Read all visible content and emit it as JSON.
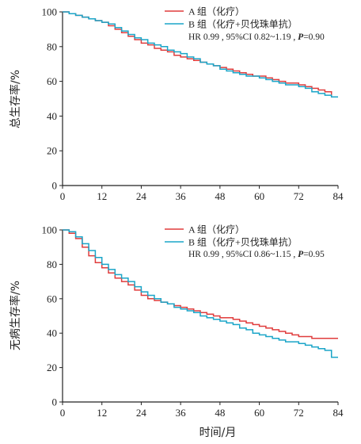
{
  "chart_data": [
    {
      "type": "line",
      "ylabel": "总生存率/%",
      "xlabel": "",
      "xlim": [
        0,
        84
      ],
      "ylim": [
        0,
        100
      ],
      "xticks": [
        "0",
        "12",
        "24",
        "36",
        "48",
        "60",
        "72",
        "84"
      ],
      "yticks": [
        "0",
        "20",
        "40",
        "60",
        "80",
        "100"
      ],
      "grid": false,
      "legend_position": "top-right",
      "stat_text": {
        "prefix": "HR 0.99 , 95%CI 0.82~1.19 , ",
        "p_label": "P",
        "p_value": "=0.90"
      },
      "series": [
        {
          "name": "A 组（化疗）",
          "color": "#e03c3c",
          "x": [
            0,
            2,
            4,
            6,
            8,
            10,
            12,
            14,
            16,
            18,
            20,
            22,
            24,
            26,
            28,
            30,
            32,
            34,
            36,
            38,
            40,
            42,
            44,
            46,
            48,
            50,
            52,
            54,
            56,
            58,
            60,
            62,
            64,
            66,
            68,
            70,
            72,
            74,
            76,
            78,
            80,
            82,
            84
          ],
          "y": [
            100,
            99,
            98,
            97,
            96,
            95,
            94,
            92,
            90,
            88,
            86,
            84,
            82,
            81,
            79,
            78,
            77,
            75,
            74,
            73,
            72,
            71,
            70,
            69,
            68,
            67,
            66,
            65,
            64,
            63,
            63,
            62,
            61,
            60,
            59,
            59,
            58,
            57,
            56,
            55,
            54,
            51,
            51
          ]
        },
        {
          "name": "B 组（化疗+贝伐珠单抗）",
          "color": "#1aa5c8",
          "x": [
            0,
            2,
            4,
            6,
            8,
            10,
            12,
            14,
            16,
            18,
            20,
            22,
            24,
            26,
            28,
            30,
            32,
            34,
            36,
            38,
            40,
            42,
            44,
            46,
            48,
            50,
            52,
            54,
            56,
            58,
            60,
            62,
            64,
            66,
            68,
            70,
            72,
            74,
            76,
            78,
            80,
            82,
            84
          ],
          "y": [
            100,
            99,
            98,
            97,
            96,
            95,
            94,
            93,
            91,
            89,
            87,
            85,
            84,
            82,
            81,
            80,
            78,
            77,
            76,
            74,
            73,
            71,
            70,
            69,
            67,
            66,
            65,
            64,
            63,
            63,
            62,
            61,
            60,
            59,
            58,
            58,
            57,
            56,
            54,
            53,
            52,
            51,
            51
          ]
        }
      ]
    },
    {
      "type": "line",
      "ylabel": "无病生存率/%",
      "xlabel": "时间/月",
      "xlim": [
        0,
        84
      ],
      "ylim": [
        0,
        100
      ],
      "xticks": [
        "0",
        "12",
        "24",
        "36",
        "48",
        "60",
        "72",
        "84"
      ],
      "yticks": [
        "0",
        "20",
        "40",
        "60",
        "80",
        "100"
      ],
      "grid": false,
      "legend_position": "top-right",
      "stat_text": {
        "prefix": "HR 0.99 , 95%CI 0.86~1.15 , ",
        "p_label": "P",
        "p_value": "=0.95"
      },
      "series": [
        {
          "name": "A 组（化疗）",
          "color": "#e03c3c",
          "x": [
            0,
            2,
            4,
            6,
            8,
            10,
            12,
            14,
            16,
            18,
            20,
            22,
            24,
            26,
            28,
            30,
            32,
            34,
            36,
            38,
            40,
            42,
            44,
            46,
            48,
            50,
            52,
            54,
            56,
            58,
            60,
            62,
            64,
            66,
            68,
            70,
            72,
            74,
            76,
            78,
            80,
            82,
            84
          ],
          "y": [
            100,
            98,
            95,
            90,
            85,
            81,
            78,
            75,
            72,
            70,
            68,
            65,
            62,
            60,
            59,
            58,
            57,
            56,
            55,
            54,
            53,
            52,
            51,
            50,
            49,
            49,
            48,
            47,
            46,
            45,
            44,
            43,
            42,
            41,
            40,
            39,
            38,
            38,
            37,
            37,
            37,
            37,
            37
          ]
        },
        {
          "name": "B 组（化疗+贝伐珠单抗）",
          "color": "#1aa5c8",
          "x": [
            0,
            2,
            4,
            6,
            8,
            10,
            12,
            14,
            16,
            18,
            20,
            22,
            24,
            26,
            28,
            30,
            32,
            34,
            36,
            38,
            40,
            42,
            44,
            46,
            48,
            50,
            52,
            54,
            56,
            58,
            60,
            62,
            64,
            66,
            68,
            70,
            72,
            74,
            76,
            78,
            80,
            82,
            84
          ],
          "y": [
            100,
            99,
            96,
            92,
            88,
            84,
            80,
            77,
            74,
            72,
            70,
            67,
            64,
            62,
            60,
            58,
            57,
            55,
            54,
            53,
            52,
            50,
            49,
            48,
            47,
            46,
            45,
            43,
            42,
            40,
            39,
            38,
            37,
            36,
            35,
            35,
            34,
            33,
            32,
            31,
            30,
            26,
            26
          ]
        }
      ]
    }
  ]
}
